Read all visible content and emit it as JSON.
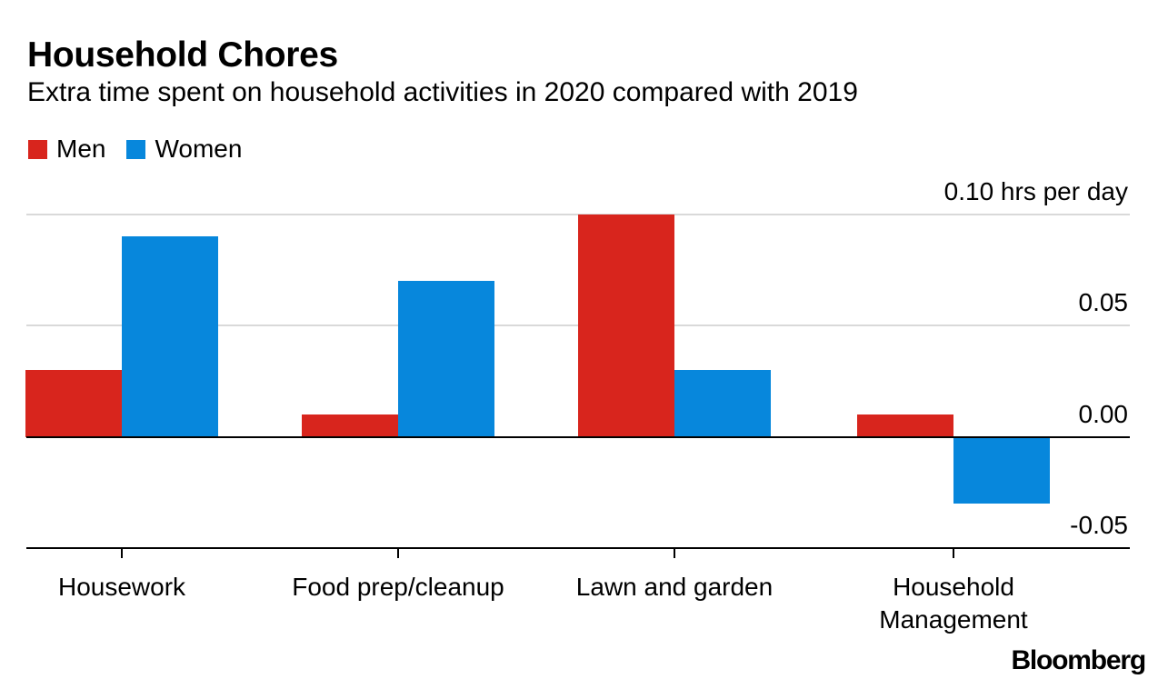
{
  "header": {
    "title": "Household Chores",
    "subtitle": "Extra time spent on household activities in 2020 compared with 2019"
  },
  "footer": {
    "brand": "Bloomberg"
  },
  "colors": {
    "men": "#d8251d",
    "women": "#0787dc",
    "grid_light": "#d9d9d9",
    "axis_dark": "#000000",
    "background": "#ffffff",
    "text": "#000000"
  },
  "chart_data": {
    "type": "bar",
    "title": "Household Chores",
    "subtitle": "Extra time spent on household activities in 2020 compared with 2019",
    "categories": [
      "Housework",
      "Food prep/cleanup",
      "Lawn and garden",
      "Household\nManagement"
    ],
    "series": [
      {
        "name": "Men",
        "color": "#d8251d",
        "values": [
          0.03,
          0.01,
          0.1,
          0.01
        ]
      },
      {
        "name": "Women",
        "color": "#0787dc",
        "values": [
          0.09,
          0.07,
          0.03,
          -0.03
        ]
      }
    ],
    "unit": "hrs per day",
    "ylim": [
      -0.05,
      0.1
    ],
    "yticks": [
      {
        "value": 0.1,
        "label": "0.10 hrs per day",
        "line": "light"
      },
      {
        "value": 0.05,
        "label": "0.05",
        "line": "light"
      },
      {
        "value": 0.0,
        "label": "0.00",
        "line": "dark"
      },
      {
        "value": -0.05,
        "label": "-0.05",
        "line": "axis"
      }
    ],
    "grid": "horizontal",
    "legend_position": "top-left"
  }
}
